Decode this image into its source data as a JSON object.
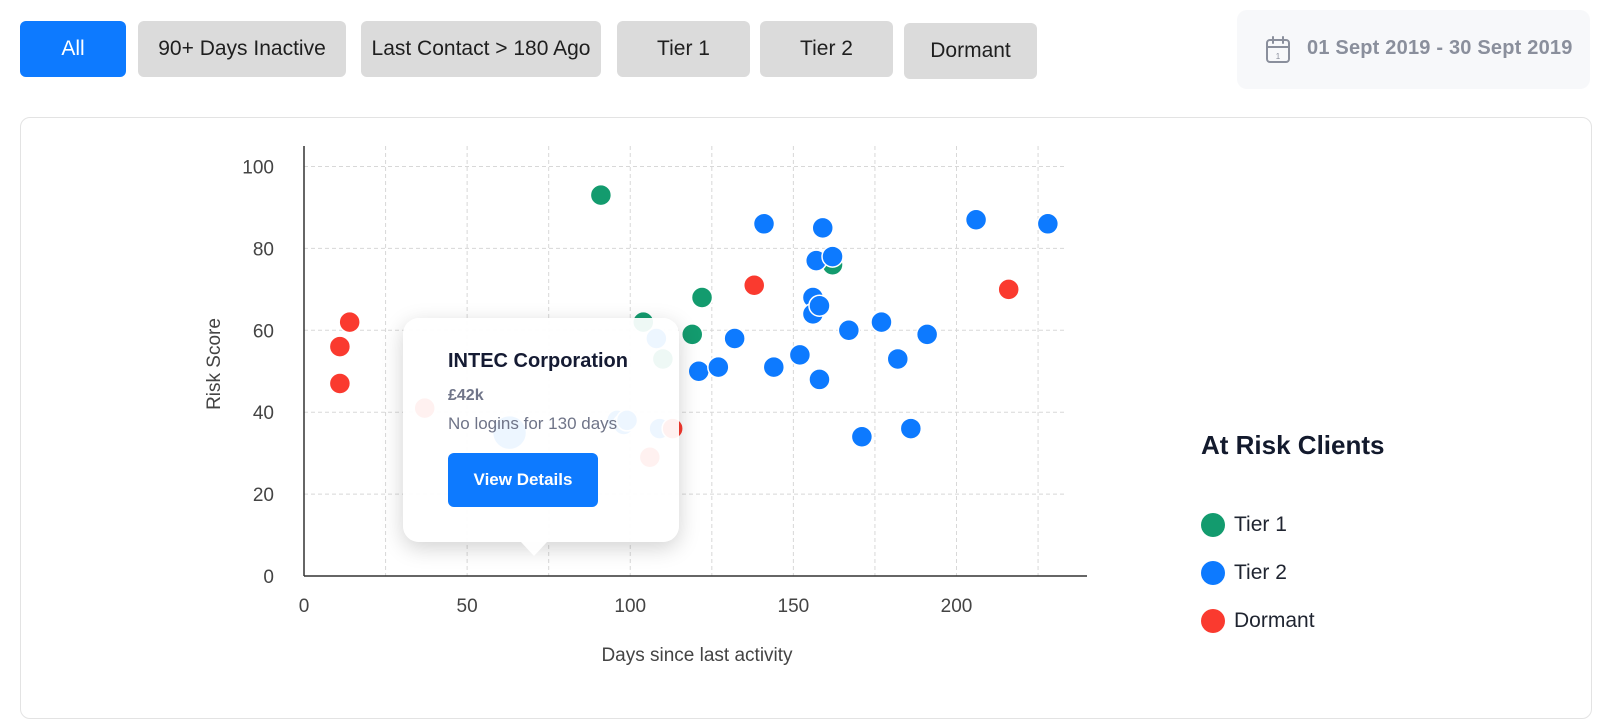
{
  "filters": {
    "all": "All",
    "inactive": "90+ Days Inactive",
    "last_contact": "Last Contact > 180 Ago",
    "tier1": "Tier 1",
    "tier2": "Tier 2",
    "dormant": "Dormant"
  },
  "date_range": {
    "label": "01 Sept 2019 - 30 Sept 2019",
    "icon": "calendar-icon"
  },
  "legend": {
    "title": "At Risk Clients",
    "items": [
      {
        "label": "Tier 1",
        "color": "#139b6e"
      },
      {
        "label": "Tier 2",
        "color": "#0d7aff"
      },
      {
        "label": "Dormant",
        "color": "#fa3a2f"
      }
    ]
  },
  "tooltip": {
    "name": "INTEC Corporation",
    "value": "£42k",
    "note": "No logins for 130 days",
    "button": "View Details"
  },
  "colors": {
    "accent": "#0d7aff",
    "tier1": "#139b6e",
    "tier2": "#0d7aff",
    "dormant": "#fa3a2f"
  },
  "chart_data": {
    "type": "scatter",
    "xlabel": "Days since last activity",
    "ylabel": "Risk Score",
    "xlim": [
      0,
      240
    ],
    "ylim": [
      0,
      105
    ],
    "xticks": [
      0,
      50,
      100,
      150,
      200
    ],
    "yticks": [
      0,
      20,
      40,
      60,
      80,
      100
    ],
    "grid": true,
    "legend_position": "right",
    "highlighted": {
      "series": "Tier 2",
      "x": 63,
      "y": 35
    },
    "series": [
      {
        "name": "Tier 1",
        "color": "#139b6e",
        "points": [
          [
            91,
            93
          ],
          [
            104,
            62
          ],
          [
            110,
            53
          ],
          [
            122,
            68
          ],
          [
            119,
            59
          ],
          [
            162,
            76
          ]
        ]
      },
      {
        "name": "Tier 2",
        "color": "#0d7aff",
        "points": [
          [
            63,
            35
          ],
          [
            96,
            38
          ],
          [
            98,
            37
          ],
          [
            99,
            38
          ],
          [
            109,
            36
          ],
          [
            108,
            58
          ],
          [
            121,
            50
          ],
          [
            127,
            51
          ],
          [
            132,
            58
          ],
          [
            141,
            86
          ],
          [
            144,
            51
          ],
          [
            152,
            54
          ],
          [
            157,
            77
          ],
          [
            159,
            85
          ],
          [
            162,
            78
          ],
          [
            156,
            68
          ],
          [
            156,
            64
          ],
          [
            158,
            66
          ],
          [
            158,
            48
          ],
          [
            167,
            60
          ],
          [
            171,
            34
          ],
          [
            177,
            62
          ],
          [
            182,
            53
          ],
          [
            186,
            36
          ],
          [
            191,
            59
          ],
          [
            206,
            87
          ],
          [
            228,
            86
          ]
        ]
      },
      {
        "name": "Dormant",
        "color": "#fa3a2f",
        "points": [
          [
            11,
            56
          ],
          [
            14,
            62
          ],
          [
            11,
            47
          ],
          [
            37,
            41
          ],
          [
            106,
            29
          ],
          [
            113,
            36
          ],
          [
            138,
            71
          ],
          [
            216,
            70
          ]
        ]
      }
    ]
  }
}
